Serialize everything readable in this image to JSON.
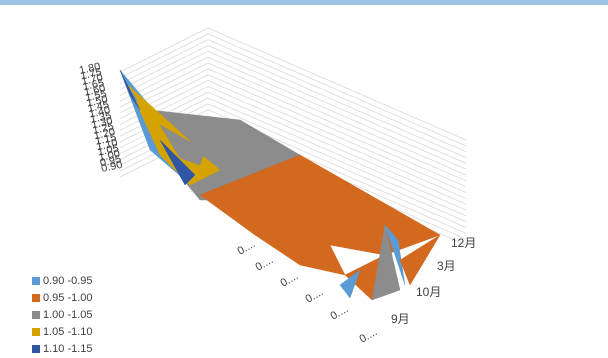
{
  "colors": {
    "top_bar": "#9dc3e6",
    "grid": "#d9d9d9",
    "axis_text": "#404040"
  },
  "chart_data": {
    "type": "surface",
    "title": "",
    "z_ticks": [
      "1.80",
      "1.75",
      "1.70",
      "1.65",
      "1.60",
      "1.55",
      "1.50",
      "1.45",
      "1.40",
      "1.35",
      "1.30",
      "1.25",
      "1.20",
      "1.15",
      "1.10",
      "1.05",
      "1.00",
      "0.95",
      "0.90"
    ],
    "z_range": [
      0.9,
      1.8
    ],
    "x_tick_labels": [
      "0....",
      "0....",
      "0....",
      "0....",
      "0....",
      "0...."
    ],
    "series_axis_labels": [
      "12月",
      "3月",
      "10月",
      "9月"
    ],
    "legend": [
      {
        "label": "0.90 -0.95",
        "color": "#5b9bd5"
      },
      {
        "label": "0.95 -1.00",
        "color": "#d2691e"
      },
      {
        "label": "1.00 -1.05",
        "color": "#8c8c8c"
      },
      {
        "label": "1.05 -1.10",
        "color": "#d4a300"
      },
      {
        "label": "1.10 -1.15",
        "color": "#2f55a4"
      }
    ],
    "legend_position": "bottom-left",
    "grid": true
  }
}
